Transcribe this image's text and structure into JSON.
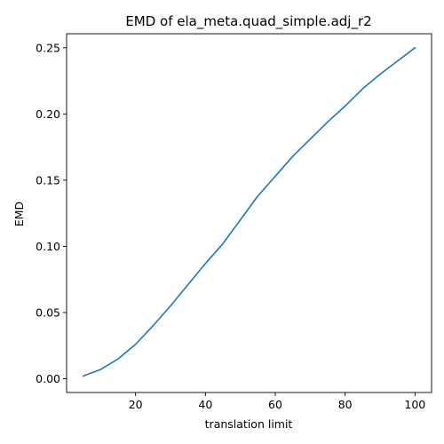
{
  "chart_data": {
    "type": "line",
    "title": "EMD of ela_meta.quad_simple.adj_r2",
    "xlabel": "translation limit",
    "ylabel": "EMD",
    "xlim": [
      0.25,
      104.75
    ],
    "ylim": [
      -0.0104,
      0.2606
    ],
    "xticks": [
      20,
      40,
      60,
      80,
      100
    ],
    "xtick_labels": [
      "20",
      "40",
      "60",
      "80",
      "100"
    ],
    "yticks": [
      0.0,
      0.05,
      0.1,
      0.15,
      0.2,
      0.25
    ],
    "ytick_labels": [
      "0.00",
      "0.05",
      "0.10",
      "0.15",
      "0.20",
      "0.25"
    ],
    "grid": false,
    "legend": false,
    "series": [
      {
        "color": "#1f77b4",
        "x": [
          5,
          10,
          15,
          20,
          25,
          30,
          35,
          40,
          45,
          50,
          55,
          60,
          65,
          70,
          75,
          80,
          85,
          90,
          95,
          100
        ],
        "y": [
          0.002,
          0.007,
          0.015,
          0.026,
          0.04,
          0.055,
          0.071,
          0.087,
          0.102,
          0.12,
          0.138,
          0.153,
          0.168,
          0.181,
          0.194,
          0.206,
          0.219,
          0.23,
          0.24,
          0.25
        ]
      }
    ]
  }
}
